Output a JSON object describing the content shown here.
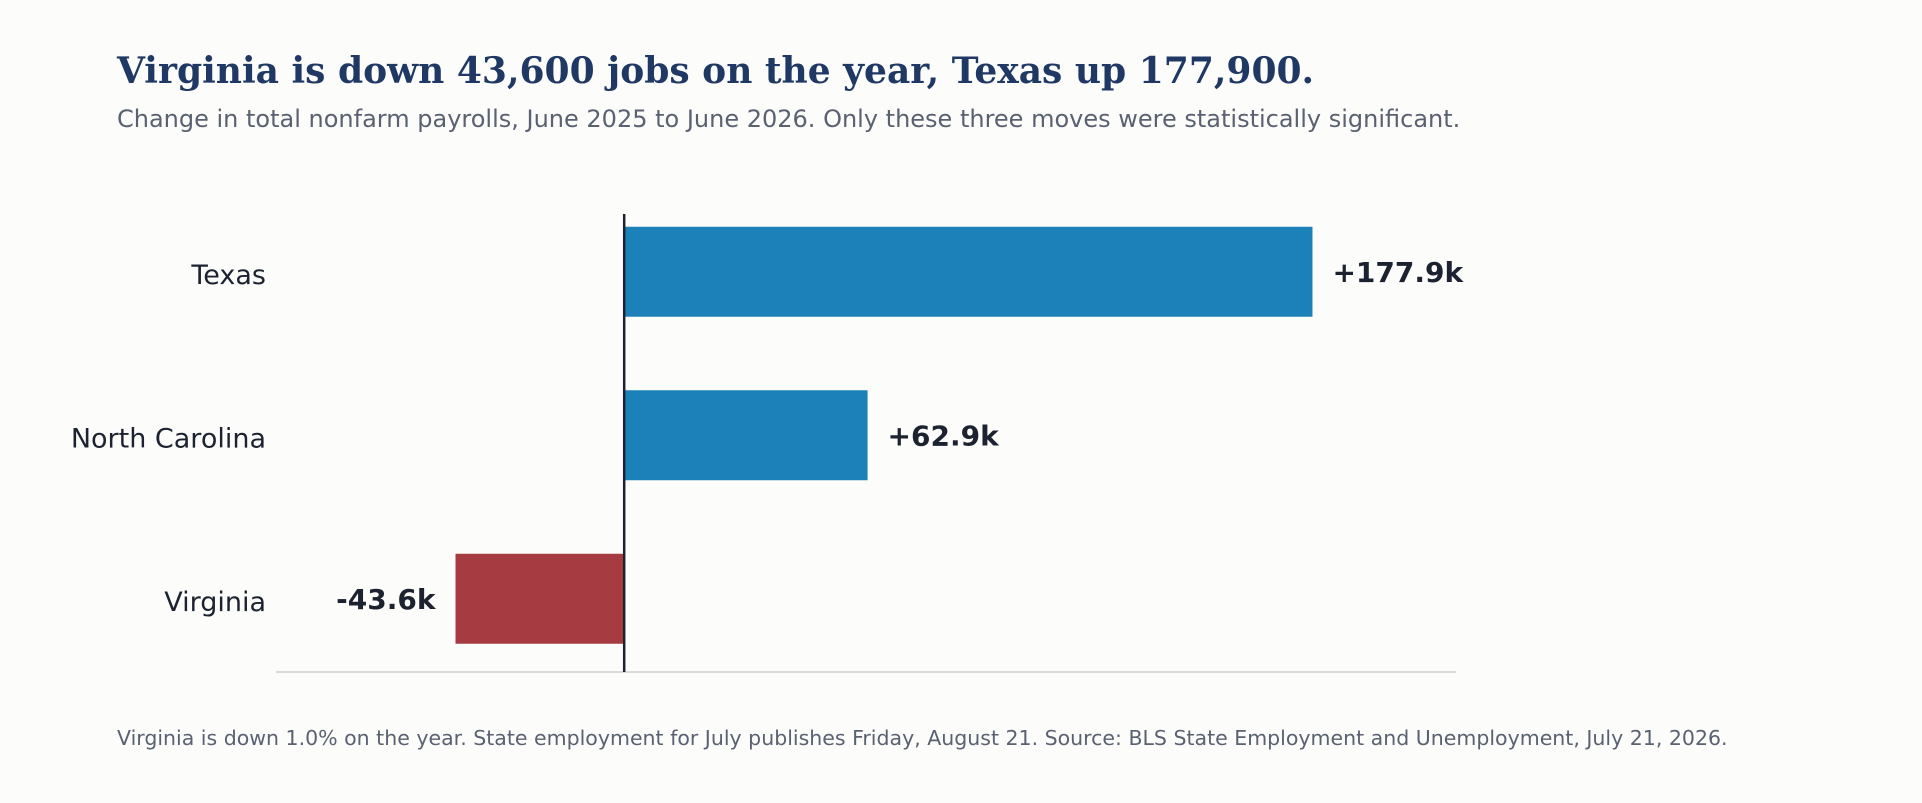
{
  "title": "Virginia is down 43,600 jobs on the year, Texas up 177,900.",
  "subtitle": "Change in total nonfarm payrolls, June 2025 to June 2026. Only these three moves were statistically significant.",
  "footer": "Virginia is down 1.0% on the year. State employment for July publishes Friday, August 21. Source: BLS State Employment and Unemployment, July 21, 2026.",
  "colors": {
    "positive": "#1b81b8",
    "negative": "#a63c42",
    "zero_line": "#1c2230",
    "axis_line": "#cfcfcf"
  },
  "chart_data": {
    "type": "bar",
    "orientation": "horizontal",
    "categories": [
      "Texas",
      "North Carolina",
      "Virginia"
    ],
    "values": [
      177.9,
      62.9,
      -43.6
    ],
    "value_labels": [
      "+177.9k",
      "+62.9k",
      "-43.6k"
    ],
    "unit": "thousand jobs",
    "xlim": [
      -90,
      215
    ],
    "grid": false
  }
}
